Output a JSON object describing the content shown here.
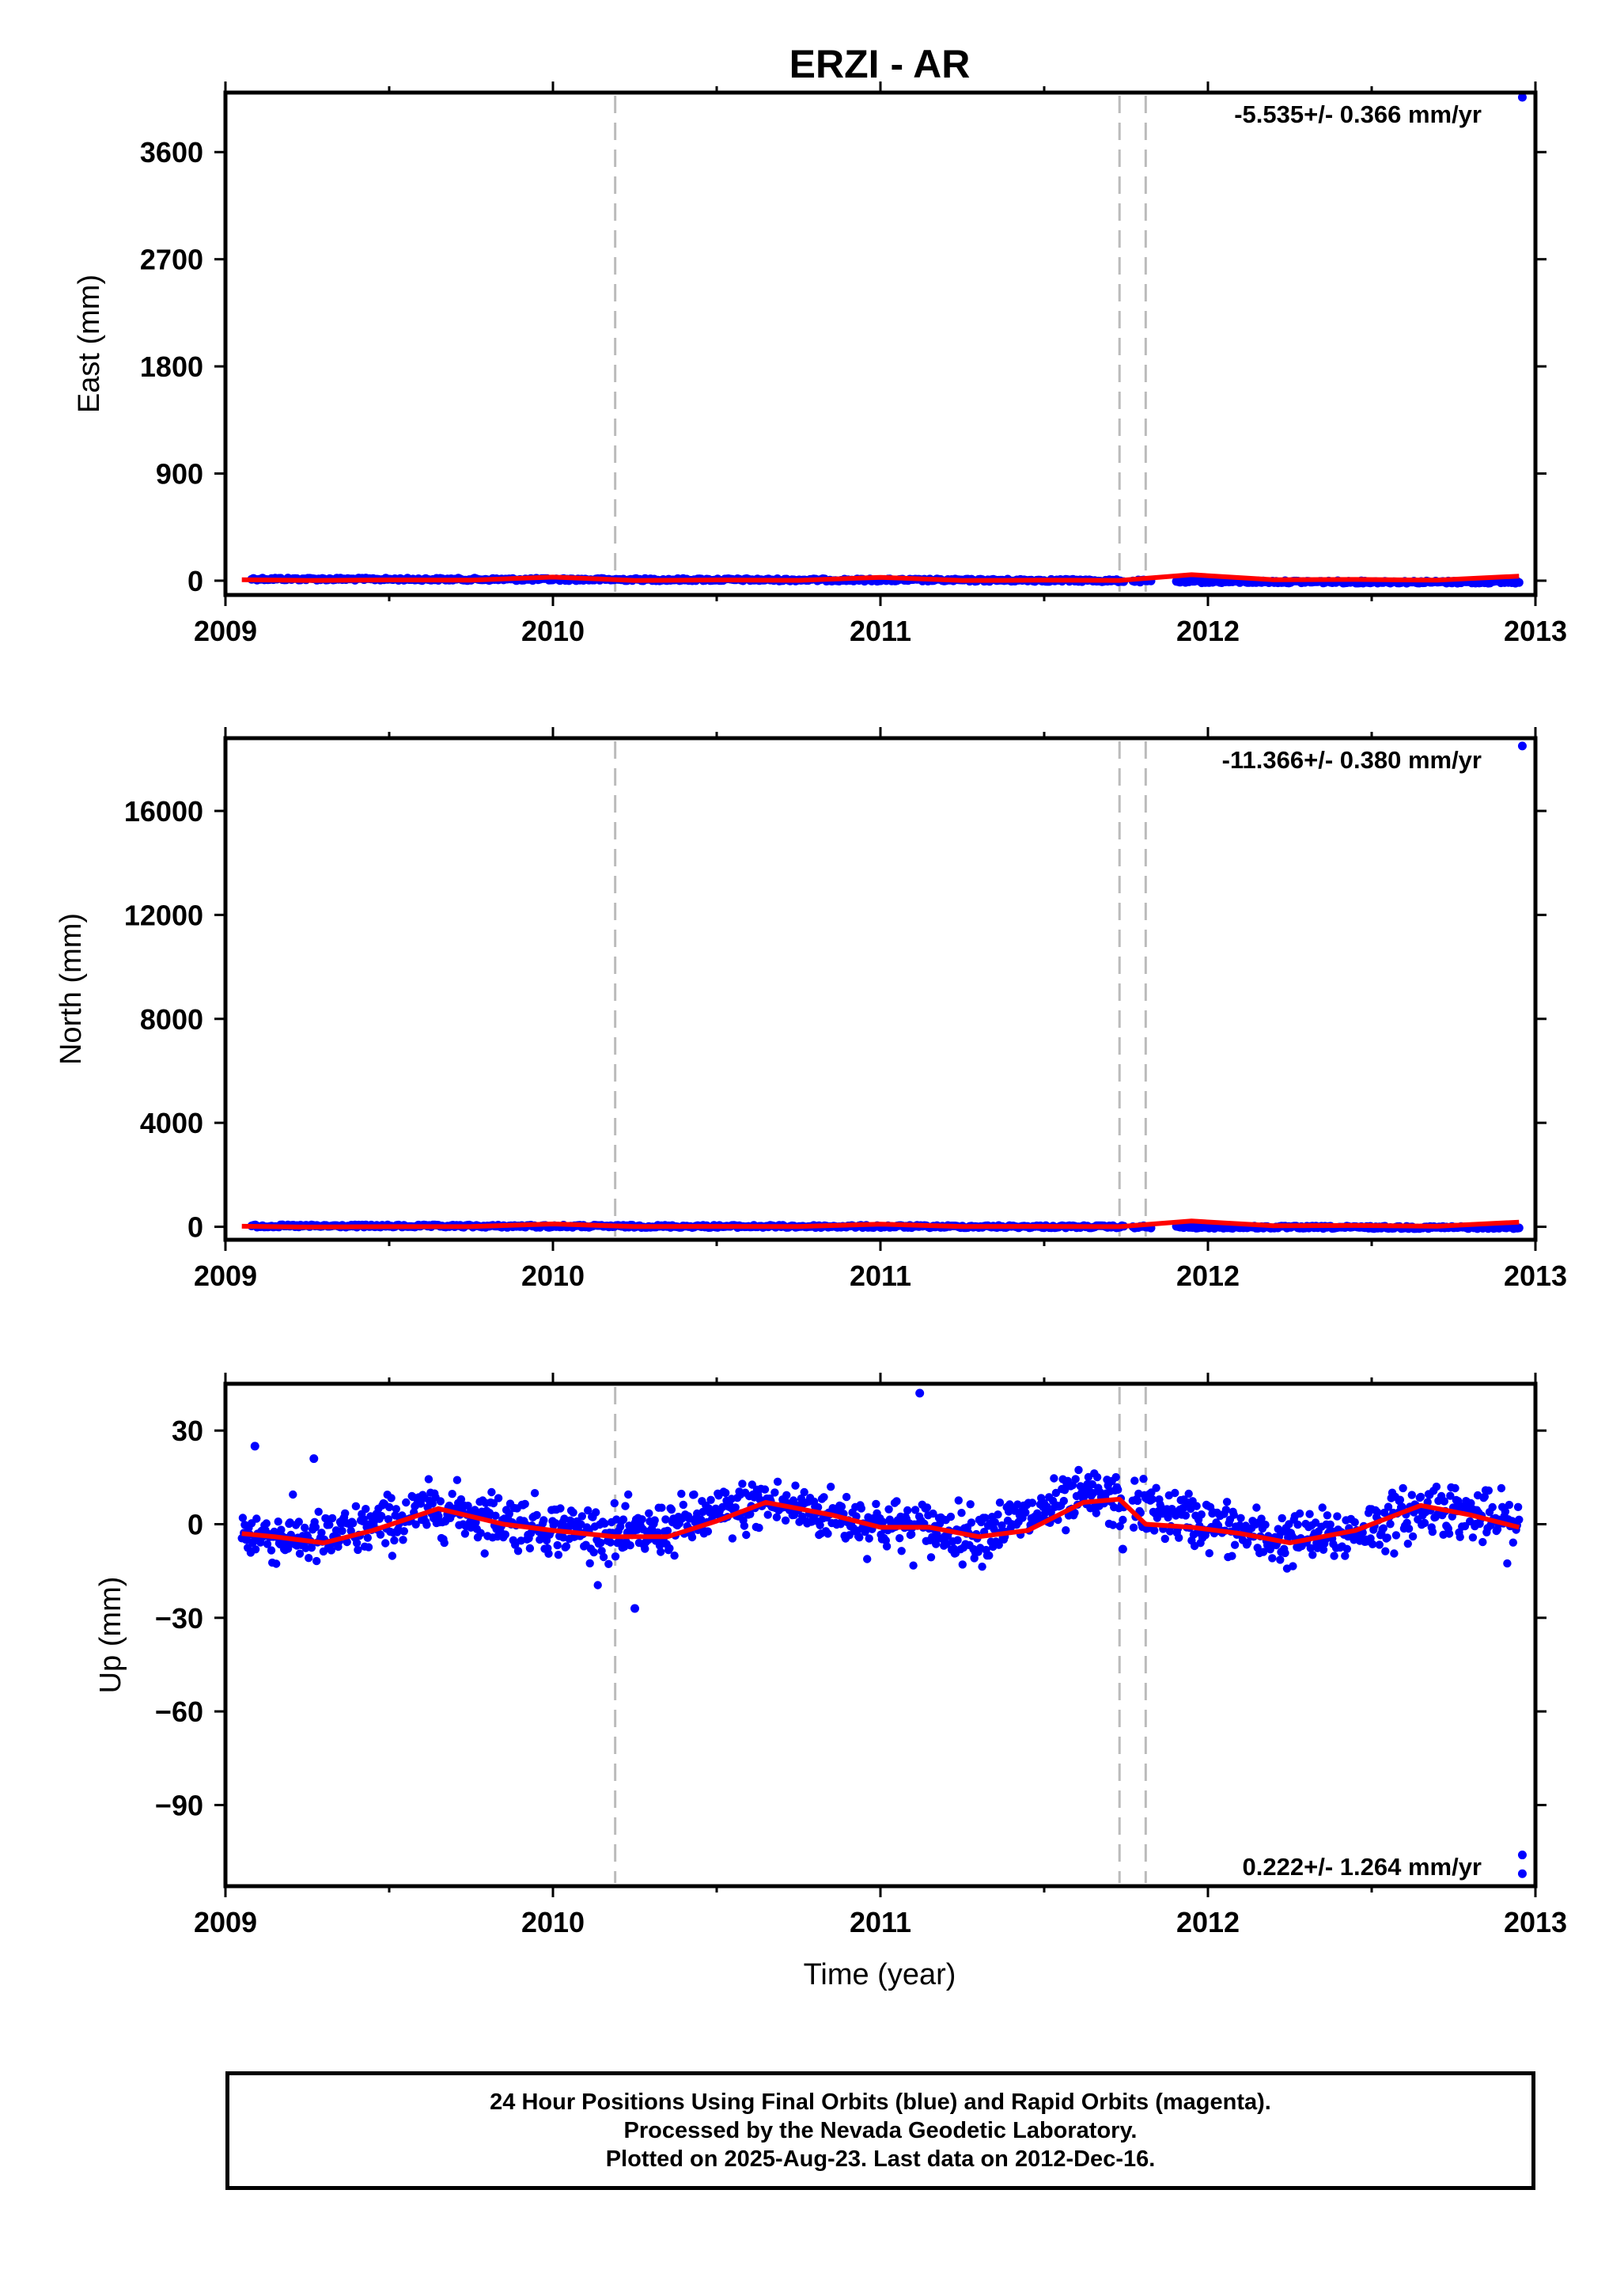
{
  "title": "ERZI - AR",
  "xlabel": "Time (year)",
  "footer": {
    "line1": "24 Hour Positions Using Final Orbits (blue) and Rapid Orbits (magenta).",
    "line2": "Processed by the Nevada Geodetic Laboratory.",
    "line3": "Plotted on 2025-Aug-23. Last data on 2012-Dec-16."
  },
  "colors": {
    "data": "#0000ff",
    "model": "#ff0000",
    "event_line": "#bbbbbb",
    "axes": "#000000"
  },
  "chart_data": [
    {
      "type": "scatter",
      "panel": "east",
      "ylabel": "East (mm)",
      "xlim": [
        2009.0,
        2013.0
      ],
      "ylim": [
        -120,
        4100
      ],
      "xticks": [
        2009,
        2010,
        2011,
        2012,
        2013
      ],
      "yticks": [
        0,
        900,
        1800,
        2700,
        3600
      ],
      "annotation": "-5.535+/- 0.366 mm/yr",
      "event_lines": [
        2010.19,
        2011.73,
        2011.81
      ],
      "outliers": [
        {
          "x": 2012.96,
          "y": 4060
        }
      ],
      "series": [
        {
          "role": "data",
          "x": [
            2009.08,
            2009.5,
            2010.0,
            2010.5,
            2011.0,
            2011.5,
            2011.7,
            2011.95,
            2012.3,
            2012.7,
            2012.95
          ],
          "y": [
            15,
            12,
            10,
            8,
            5,
            3,
            0,
            -8,
            -10,
            -12,
            -12
          ]
        },
        {
          "role": "model",
          "x": [
            2009.05,
            2009.25,
            2009.5,
            2009.75,
            2010.0,
            2010.25,
            2010.5,
            2010.75,
            2011.0,
            2011.25,
            2011.5,
            2011.73,
            2011.95,
            2012.2,
            2012.45,
            2012.7,
            2012.95
          ],
          "y": [
            8,
            2,
            6,
            5,
            30,
            2,
            6,
            3,
            28,
            2,
            4,
            2,
            50,
            8,
            10,
            4,
            38
          ]
        }
      ]
    },
    {
      "type": "scatter",
      "panel": "north",
      "ylabel": "North (mm)",
      "xlim": [
        2009.0,
        2013.0
      ],
      "ylim": [
        -500,
        18800
      ],
      "xticks": [
        2009,
        2010,
        2011,
        2012,
        2013
      ],
      "yticks": [
        0,
        4000,
        8000,
        12000,
        16000
      ],
      "annotation": "-11.366+/- 0.380 mm/yr",
      "event_lines": [
        2010.19,
        2011.73,
        2011.81
      ],
      "outliers": [
        {
          "x": 2012.96,
          "y": 18500
        }
      ],
      "series": [
        {
          "role": "data",
          "x": [
            2009.08,
            2009.5,
            2010.0,
            2010.5,
            2011.0,
            2011.5,
            2011.7,
            2011.95,
            2012.3,
            2012.7,
            2012.95
          ],
          "y": [
            30,
            25,
            20,
            15,
            10,
            5,
            0,
            -15,
            -20,
            -25,
            -25
          ]
        },
        {
          "role": "model",
          "x": [
            2009.05,
            2009.25,
            2009.5,
            2009.75,
            2010.0,
            2010.25,
            2010.5,
            2010.75,
            2011.0,
            2011.25,
            2011.5,
            2011.73,
            2011.95,
            2012.2,
            2012.45,
            2012.7,
            2012.95
          ],
          "y": [
            20,
            -10,
            5,
            10,
            110,
            10,
            15,
            10,
            100,
            10,
            15,
            5,
            220,
            40,
            50,
            20,
            180
          ]
        }
      ]
    },
    {
      "type": "scatter",
      "panel": "up",
      "ylabel": "Up (mm)",
      "xlim": [
        2009.0,
        2013.0
      ],
      "ylim": [
        -116,
        45
      ],
      "xticks": [
        2009,
        2010,
        2011,
        2012,
        2013
      ],
      "yticks": [
        -90,
        -60,
        -30,
        0,
        30
      ],
      "annotation": "0.222+/- 1.264 mm/yr",
      "event_lines": [
        2010.19,
        2011.73,
        2011.81
      ],
      "outliers": [
        {
          "x": 2009.09,
          "y": 25
        },
        {
          "x": 2009.27,
          "y": 21
        },
        {
          "x": 2010.25,
          "y": -27
        },
        {
          "x": 2011.12,
          "y": 42
        },
        {
          "x": 2011.74,
          "y": -8
        },
        {
          "x": 2012.96,
          "y": -106
        },
        {
          "x": 2012.96,
          "y": -112
        }
      ],
      "scatter_points": 1300,
      "series": [
        {
          "role": "data",
          "x": [
            2009.05,
            2009.3,
            2009.65,
            2010.0,
            2010.25,
            2010.65,
            2011.0,
            2011.3,
            2011.65,
            2011.85,
            2012.2,
            2012.4,
            2012.7,
            2012.95
          ],
          "y": [
            -3,
            -5,
            5,
            -1,
            -4,
            7,
            0,
            -3,
            9,
            4,
            -5,
            -4,
            6,
            -1
          ]
        },
        {
          "role": "model",
          "x": [
            2009.05,
            2009.15,
            2009.3,
            2009.45,
            2009.65,
            2009.85,
            2010.0,
            2010.19,
            2010.35,
            2010.5,
            2010.65,
            2010.85,
            2011.0,
            2011.15,
            2011.3,
            2011.45,
            2011.62,
            2011.73,
            2011.81,
            2011.95,
            2012.1,
            2012.25,
            2012.45,
            2012.65,
            2012.8,
            2012.95
          ],
          "y": [
            -3,
            -4,
            -6,
            -2,
            5,
            0,
            -2,
            -4,
            -4,
            1,
            7,
            3,
            -1,
            -1,
            -4,
            -2,
            7,
            8,
            0,
            -1,
            -3,
            -6,
            -2,
            6,
            3,
            -1
          ]
        }
      ]
    }
  ]
}
